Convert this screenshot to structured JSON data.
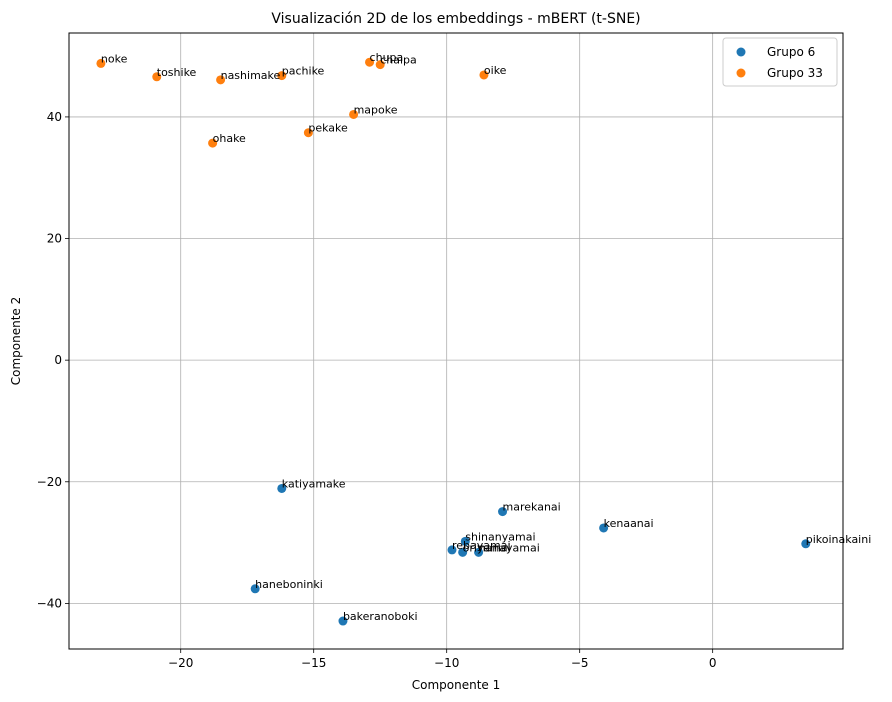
{
  "chart_data": {
    "type": "scatter",
    "title": "Visualización 2D de los embeddings - mBERT (t-SNE)",
    "xlabel": "Componente 1",
    "ylabel": "Componente 2",
    "xlim": [
      -24.2,
      4.9
    ],
    "ylim": [
      -47.5,
      53.8
    ],
    "xticks": [
      -20,
      -15,
      -10,
      -5,
      0
    ],
    "yticks": [
      -40,
      -20,
      0,
      20,
      40
    ],
    "xtick_labels": [
      "−20",
      "−15",
      "−10",
      "−5",
      "0"
    ],
    "ytick_labels": [
      "−40",
      "−20",
      "0",
      "20",
      "40"
    ],
    "grid": true,
    "legend_position": "top-right",
    "series": [
      {
        "name": "Grupo 6",
        "color": "#1f77b4",
        "points": [
          {
            "label": "katiyamake",
            "x": -16.2,
            "y": -21.1
          },
          {
            "label": "marekanai",
            "x": -7.9,
            "y": -24.9
          },
          {
            "label": "kenaanai",
            "x": -4.1,
            "y": -27.6
          },
          {
            "label": "pikoinakaini",
            "x": 3.5,
            "y": -30.2
          },
          {
            "label": "shinanyamai",
            "x": -9.3,
            "y": -29.8
          },
          {
            "label": "rebayamai",
            "x": -9.8,
            "y": -31.2
          },
          {
            "label": "oriyamai",
            "x": -9.4,
            "y": -31.6
          },
          {
            "label": "nanayamai",
            "x": -8.8,
            "y": -31.6
          },
          {
            "label": "haneboninki",
            "x": -17.2,
            "y": -37.6
          },
          {
            "label": "bakeranoboki",
            "x": -13.9,
            "y": -42.9
          }
        ]
      },
      {
        "name": "Grupo 33",
        "color": "#ff7f0e",
        "points": [
          {
            "label": "noke",
            "x": -23.0,
            "y": 48.8
          },
          {
            "label": "toshike",
            "x": -20.9,
            "y": 46.6
          },
          {
            "label": "nashimake",
            "x": -18.5,
            "y": 46.1
          },
          {
            "label": "pachike",
            "x": -16.2,
            "y": 46.8
          },
          {
            "label": "chupa",
            "x": -12.9,
            "y": 49.0
          },
          {
            "label": "chaipa",
            "x": -12.5,
            "y": 48.6
          },
          {
            "label": "oike",
            "x": -8.6,
            "y": 46.9
          },
          {
            "label": "mapoke",
            "x": -13.5,
            "y": 40.4
          },
          {
            "label": "pekake",
            "x": -15.2,
            "y": 37.4
          },
          {
            "label": "ohake",
            "x": -18.8,
            "y": 35.7
          }
        ]
      }
    ]
  }
}
